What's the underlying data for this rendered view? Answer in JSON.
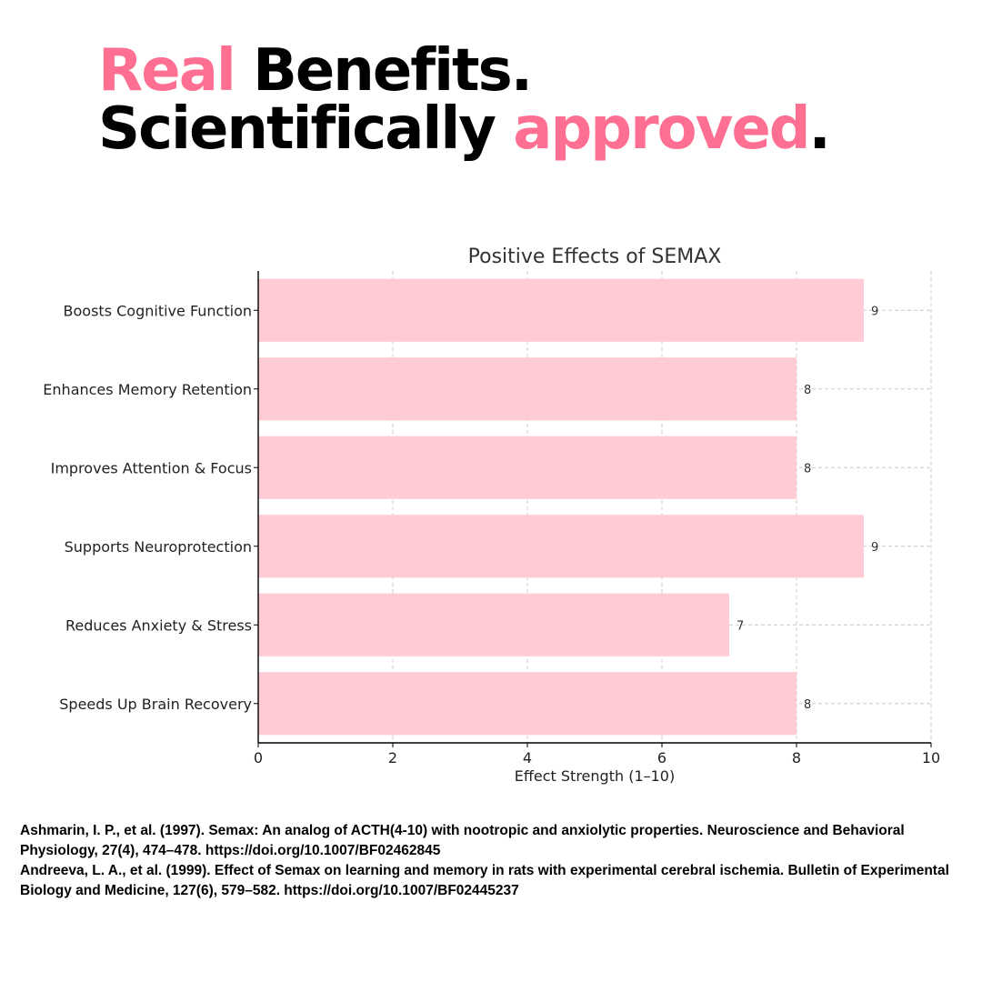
{
  "headline": {
    "line1_accent": "Real",
    "line1_rest": " Benefits.",
    "line2_start": "Scientifically ",
    "line2_accent": "approved",
    "line2_end": "."
  },
  "colors": {
    "accent": "#ff6f91",
    "bar": "#ffccd5",
    "grid": "#cccccc",
    "axis": "#000000"
  },
  "chart_data": {
    "type": "bar",
    "orientation": "horizontal",
    "title": "Positive Effects of SEMAX",
    "xlabel": "Effect Strength (1–10)",
    "ylabel": "",
    "categories": [
      "Boosts Cognitive Function",
      "Enhances Memory Retention",
      "Improves Attention & Focus",
      "Supports Neuroprotection",
      "Reduces Anxiety & Stress",
      "Speeds Up Brain Recovery"
    ],
    "values": [
      9,
      8,
      8,
      9,
      7,
      8
    ],
    "xlim": [
      0,
      10
    ],
    "xticks": [
      0,
      2,
      4,
      6,
      8,
      10
    ],
    "grid": true,
    "data_labels": true
  },
  "references": [
    "Ashmarin, I. P., et al. (1997). Semax: An analog of ACTH(4-10) with nootropic and anxiolytic properties. Neuroscience and Behavioral Physiology, 27(4), 474–478. https://doi.org/10.1007/BF02462845",
    "Andreeva, L. A., et al. (1999). Effect of Semax on learning and memory in rats with experimental cerebral ischemia. Bulletin of Experimental Biology and Medicine, 127(6), 579–582. https://doi.org/10.1007/BF02445237"
  ]
}
